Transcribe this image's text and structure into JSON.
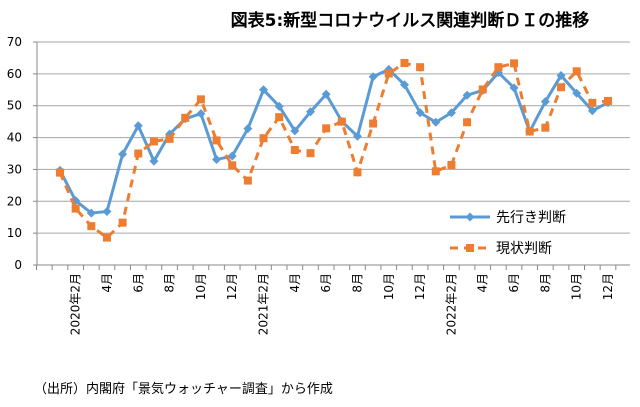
{
  "chart_data": {
    "type": "line",
    "title": "図表5:新型コロナウイルス関連判断ＤＩの推移",
    "source": "（出所）内閣府「景気ウォッチャー調査」から作成",
    "xlabel": "",
    "ylabel": "",
    "ylim": [
      0,
      70
    ],
    "yticks": [
      0,
      10,
      20,
      30,
      40,
      50,
      60,
      70
    ],
    "grid": true,
    "legend_position": "bottom-right",
    "x": [
      "2020-01",
      "2020-02",
      "2020-03",
      "2020-04",
      "2020-05",
      "2020-06",
      "2020-07",
      "2020-08",
      "2020-09",
      "2020-10",
      "2020-11",
      "2020-12",
      "2021-01",
      "2021-02",
      "2021-03",
      "2021-04",
      "2021-05",
      "2021-06",
      "2021-07",
      "2021-08",
      "2021-09",
      "2021-10",
      "2021-11",
      "2021-12",
      "2022-01",
      "2022-02",
      "2022-03",
      "2022-04",
      "2022-05",
      "2022-06",
      "2022-07",
      "2022-08",
      "2022-09",
      "2022-10",
      "2022-11",
      "2022-12"
    ],
    "xtick_labels": [
      "2020年2月",
      "4月",
      "6月",
      "8月",
      "10月",
      "12月",
      "2021年2月",
      "4月",
      "6月",
      "8月",
      "10月",
      "12月",
      "2022年2月",
      "4月",
      "6月",
      "8月",
      "10月",
      "12月"
    ],
    "series": [
      {
        "name": "先行き判断",
        "color": "#5B9BD5",
        "style": "solid-diamond",
        "values": [
          29.7,
          20.2,
          16.3,
          16.8,
          34.8,
          43.7,
          32.6,
          41.1,
          45.9,
          47.5,
          33.1,
          34.2,
          42.8,
          55.0,
          49.8,
          42.1,
          48.1,
          53.6,
          45.1,
          40.4,
          59.1,
          61.4,
          56.6,
          47.8,
          44.8,
          47.8,
          53.3,
          54.8,
          60.4,
          55.6,
          41.9,
          51.3,
          59.5,
          53.9,
          48.4,
          51.0
        ]
      },
      {
        "name": "現状判断",
        "color": "#ED7D31",
        "style": "dashed-square",
        "values": [
          29.0,
          17.7,
          12.2,
          8.6,
          13.3,
          35.0,
          38.8,
          39.6,
          46.2,
          52.0,
          39.1,
          31.3,
          26.5,
          39.8,
          46.4,
          36.1,
          35.1,
          42.9,
          45.0,
          29.1,
          44.4,
          60.1,
          63.4,
          62.1,
          29.4,
          31.4,
          44.8,
          55.1,
          62.1,
          63.3,
          41.9,
          43.1,
          55.8,
          60.8,
          50.9,
          51.5
        ]
      }
    ]
  }
}
